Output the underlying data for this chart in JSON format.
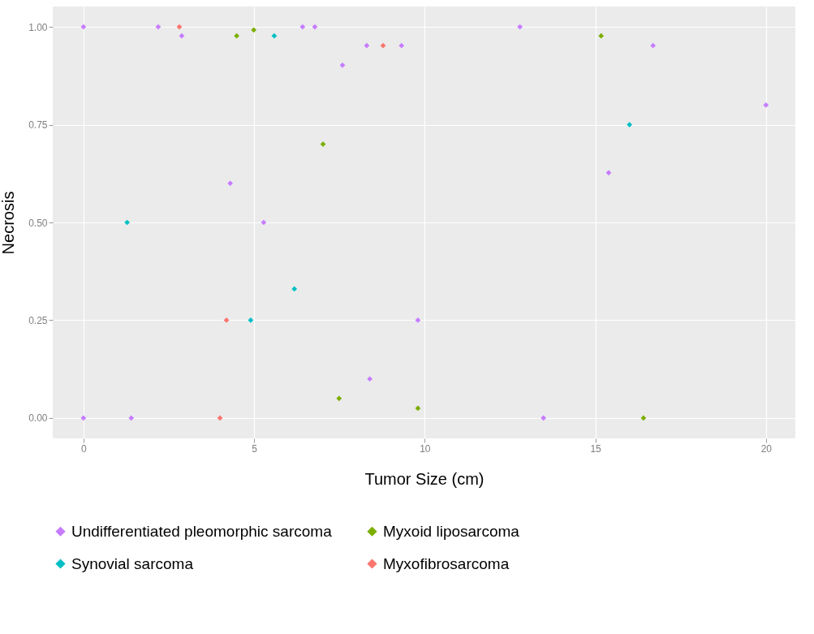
{
  "chart_data": {
    "type": "scatter",
    "xlabel": "Tumor Size (cm)",
    "ylabel": "Necrosis",
    "xlim": [
      -0.9,
      20.86
    ],
    "ylim": [
      -0.052,
      1.052
    ],
    "xticks": [
      0,
      5,
      10,
      15,
      20
    ],
    "yticks": [
      {
        "value": 0,
        "label": "0.00"
      },
      {
        "value": 0.25,
        "label": "0.25"
      },
      {
        "value": 0.5,
        "label": "0.50"
      },
      {
        "value": 0.75,
        "label": "0.75"
      },
      {
        "value": 1,
        "label": "1.00"
      }
    ],
    "grid": true,
    "legend": "bottom",
    "marker": "diamond",
    "series": [
      {
        "name": "Undifferentiated pleomorphic sarcoma",
        "color": "#c77cff",
        "x": [
          0,
          2.19,
          2.88,
          6.42,
          6.78,
          8.3,
          9.32,
          7.59,
          12.79,
          16.69,
          20,
          15.39,
          4.3,
          5.28,
          9.8,
          8.39,
          0,
          1.4,
          13.48
        ],
        "values": [
          1,
          1,
          0.977,
          1,
          1,
          0.952,
          0.952,
          0.902,
          1,
          0.952,
          0.8,
          0.627,
          0.6,
          0.5,
          0.25,
          0.1,
          0,
          0,
          0
        ]
      },
      {
        "name": "Myxoid liposarcoma",
        "color": "#7cae00",
        "x": [
          4.49,
          4.99,
          15.17,
          7.02,
          7.49,
          9.8,
          16.41
        ],
        "values": [
          0.977,
          0.992,
          0.977,
          0.7,
          0.05,
          0.025,
          0
        ]
      },
      {
        "name": "Synovial sarcoma",
        "color": "#00bfc4",
        "x": [
          5.59,
          16,
          1.28,
          6.18,
          4.9
        ],
        "values": [
          0.977,
          0.75,
          0.5,
          0.33,
          0.25
        ]
      },
      {
        "name": "Myxofibrosarcoma",
        "color": "#f8766d",
        "x": [
          2.81,
          8.78,
          4.19,
          4
        ],
        "values": [
          1,
          0.952,
          0.25,
          0
        ]
      }
    ]
  }
}
